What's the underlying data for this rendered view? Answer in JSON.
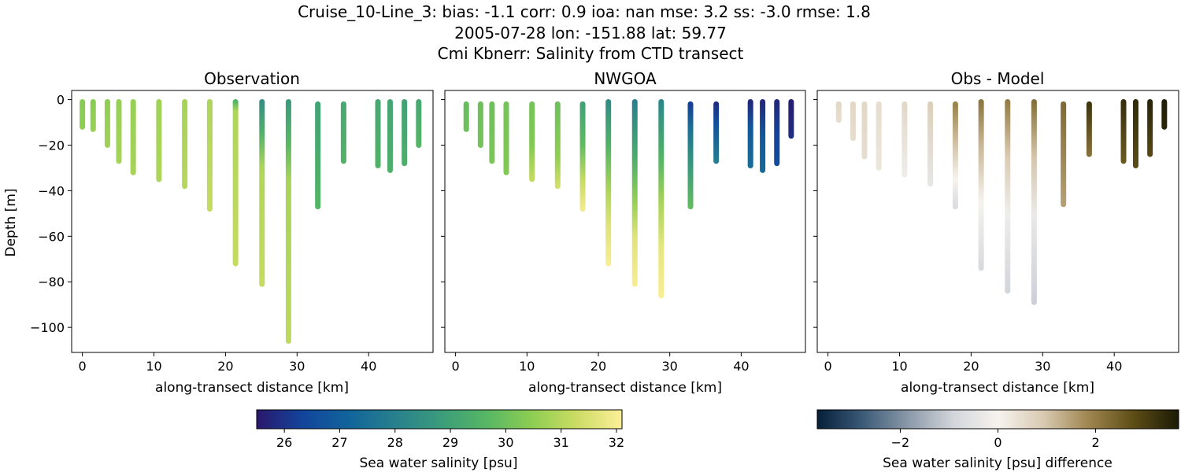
{
  "header": {
    "title_lines": [
      "Cruise_10-Line_3: bias: -1.1  corr: 0.9  ioa: nan  mse: 3.2  ss: -3.0  rmse: 1.8",
      "2005-07-28 lon: -151.88 lat: 59.77",
      "Cmi Kbnerr: Salinity from CTD transect"
    ]
  },
  "chart_data": [
    {
      "type": "scatter",
      "panel": "observation",
      "title": "Observation",
      "xlabel": "along-transect distance [km]",
      "ylabel": "Depth [m]",
      "xlim": [
        -1.5,
        49
      ],
      "ylim": [
        -111,
        4
      ],
      "xticks": [
        0,
        10,
        20,
        30,
        40
      ],
      "yticks": [
        0,
        -20,
        -40,
        -60,
        -80,
        -100
      ],
      "colormap": "haline",
      "clim": [
        25.5,
        32.1
      ],
      "profiles": [
        {
          "x": 0.0,
          "top": -1,
          "bottom": -12,
          "stops": [
            [
              0,
              30.4
            ],
            [
              -12,
              30.5
            ]
          ]
        },
        {
          "x": 1.5,
          "top": -1,
          "bottom": -13,
          "stops": [
            [
              0,
              30.4
            ],
            [
              -13,
              30.6
            ]
          ]
        },
        {
          "x": 3.5,
          "top": -1,
          "bottom": -20,
          "stops": [
            [
              0,
              30.5
            ],
            [
              -20,
              30.7
            ]
          ]
        },
        {
          "x": 5.1,
          "top": -1,
          "bottom": -27,
          "stops": [
            [
              0,
              30.6
            ],
            [
              -27,
              30.8
            ]
          ]
        },
        {
          "x": 7.1,
          "top": -1,
          "bottom": -32,
          "stops": [
            [
              0,
              30.6
            ],
            [
              -32,
              30.8
            ]
          ]
        },
        {
          "x": 10.7,
          "top": -1,
          "bottom": -35,
          "stops": [
            [
              0,
              30.7
            ],
            [
              -35,
              30.9
            ]
          ]
        },
        {
          "x": 14.3,
          "top": -1,
          "bottom": -38,
          "stops": [
            [
              0,
              30.8
            ],
            [
              -38,
              31.0
            ]
          ]
        },
        {
          "x": 17.8,
          "top": -1,
          "bottom": -48,
          "stops": [
            [
              0,
              30.9
            ],
            [
              -48,
              31.2
            ]
          ]
        },
        {
          "x": 21.4,
          "top": -1,
          "bottom": -72,
          "stops": [
            [
              0,
              29.6
            ],
            [
              -5,
              30.9
            ],
            [
              -72,
              31.2
            ]
          ]
        },
        {
          "x": 25.1,
          "top": -1,
          "bottom": -81,
          "stops": [
            [
              0,
              28.5
            ],
            [
              -15,
              29.5
            ],
            [
              -30,
              30.9
            ],
            [
              -81,
              31.2
            ]
          ]
        },
        {
          "x": 28.8,
          "top": -1,
          "bottom": -106,
          "stops": [
            [
              0,
              28.8
            ],
            [
              -20,
              29.7
            ],
            [
              -35,
              30.8
            ],
            [
              -106,
              31.1
            ]
          ]
        },
        {
          "x": 32.9,
          "top": -2,
          "bottom": -47,
          "stops": [
            [
              -2,
              29.0
            ],
            [
              -47,
              29.6
            ]
          ]
        },
        {
          "x": 36.5,
          "top": -2,
          "bottom": -27,
          "stops": [
            [
              -2,
              29.2
            ],
            [
              -27,
              29.5
            ]
          ]
        },
        {
          "x": 41.3,
          "top": -1,
          "bottom": -29,
          "stops": [
            [
              0,
              29.2
            ],
            [
              -29,
              29.5
            ]
          ]
        },
        {
          "x": 43.0,
          "top": -1,
          "bottom": -31,
          "stops": [
            [
              0,
              29.1
            ],
            [
              -31,
              29.4
            ]
          ]
        },
        {
          "x": 45.0,
          "top": -1,
          "bottom": -28,
          "stops": [
            [
              0,
              29.0
            ],
            [
              -28,
              29.4
            ]
          ]
        },
        {
          "x": 47.0,
          "top": -1,
          "bottom": -20,
          "stops": [
            [
              0,
              29.2
            ],
            [
              -20,
              29.6
            ]
          ]
        }
      ]
    },
    {
      "type": "scatter",
      "panel": "model",
      "title": "NWGOA",
      "xlabel": "along-transect distance [km]",
      "ylabel": "",
      "xlim": [
        -1.5,
        49
      ],
      "ylim": [
        -111,
        4
      ],
      "xticks": [
        0,
        10,
        20,
        30,
        40
      ],
      "yticks": [
        0,
        -20,
        -40,
        -60,
        -80,
        -100
      ],
      "colormap": "haline",
      "clim": [
        25.5,
        32.1
      ],
      "profiles": [
        {
          "x": 1.5,
          "top": -2,
          "bottom": -13,
          "stops": [
            [
              -2,
              29.9
            ],
            [
              -13,
              30.0
            ]
          ]
        },
        {
          "x": 3.5,
          "top": -2,
          "bottom": -20,
          "stops": [
            [
              -2,
              30.0
            ],
            [
              -20,
              30.1
            ]
          ]
        },
        {
          "x": 5.1,
          "top": -2,
          "bottom": -27,
          "stops": [
            [
              -2,
              30.0
            ],
            [
              -27,
              30.2
            ]
          ]
        },
        {
          "x": 7.1,
          "top": -2,
          "bottom": -32,
          "stops": [
            [
              -2,
              30.1
            ],
            [
              -32,
              30.3
            ]
          ]
        },
        {
          "x": 10.7,
          "top": -2,
          "bottom": -35,
          "stops": [
            [
              -2,
              30.1
            ],
            [
              -20,
              30.3
            ],
            [
              -35,
              31.2
            ]
          ]
        },
        {
          "x": 14.3,
          "top": -2,
          "bottom": -38,
          "stops": [
            [
              -2,
              30.0
            ],
            [
              -25,
              30.5
            ],
            [
              -38,
              31.4
            ]
          ]
        },
        {
          "x": 17.8,
          "top": -2,
          "bottom": -48,
          "stops": [
            [
              -2,
              29.0
            ],
            [
              -20,
              29.8
            ],
            [
              -35,
              31.2
            ],
            [
              -48,
              31.9
            ]
          ]
        },
        {
          "x": 21.4,
          "top": -1,
          "bottom": -72,
          "stops": [
            [
              0,
              28.4
            ],
            [
              -20,
              29.5
            ],
            [
              -40,
              30.9
            ],
            [
              -55,
              31.6
            ],
            [
              -72,
              32.0
            ]
          ]
        },
        {
          "x": 25.1,
          "top": -1,
          "bottom": -81,
          "stops": [
            [
              0,
              28.0
            ],
            [
              -25,
              29.3
            ],
            [
              -45,
              30.6
            ],
            [
              -60,
              31.6
            ],
            [
              -81,
              32.0
            ]
          ]
        },
        {
          "x": 28.8,
          "top": -1,
          "bottom": -86,
          "stops": [
            [
              0,
              28.2
            ],
            [
              -25,
              29.5
            ],
            [
              -45,
              30.8
            ],
            [
              -65,
              31.7
            ],
            [
              -86,
              32.0
            ]
          ]
        },
        {
          "x": 32.9,
          "top": -2,
          "bottom": -47,
          "stops": [
            [
              -2,
              26.2
            ],
            [
              -12,
              27.5
            ],
            [
              -30,
              28.8
            ],
            [
              -47,
              29.8
            ]
          ]
        },
        {
          "x": 36.5,
          "top": -2,
          "bottom": -27,
          "stops": [
            [
              -2,
              25.9
            ],
            [
              -10,
              26.6
            ],
            [
              -27,
              27.9
            ]
          ]
        },
        {
          "x": 41.3,
          "top": -1,
          "bottom": -29,
          "stops": [
            [
              0,
              25.8
            ],
            [
              -12,
              26.8
            ],
            [
              -29,
              27.4
            ]
          ]
        },
        {
          "x": 43.0,
          "top": -1,
          "bottom": -31,
          "stops": [
            [
              0,
              25.8
            ],
            [
              -15,
              26.8
            ],
            [
              -31,
              27.3
            ]
          ]
        },
        {
          "x": 45.0,
          "top": -1,
          "bottom": -28,
          "stops": [
            [
              0,
              25.8
            ],
            [
              -15,
              26.3
            ],
            [
              -28,
              26.5
            ]
          ]
        },
        {
          "x": 47.0,
          "top": -1,
          "bottom": -16,
          "stops": [
            [
              0,
              25.6
            ],
            [
              -16,
              25.9
            ]
          ]
        }
      ]
    },
    {
      "type": "scatter",
      "panel": "difference",
      "title": "Obs - Model",
      "xlabel": "along-transect distance [km]",
      "ylabel": "",
      "xlim": [
        -1.5,
        49
      ],
      "ylim": [
        -111,
        4
      ],
      "xticks": [
        0,
        10,
        20,
        30,
        40
      ],
      "yticks": [
        0,
        -20,
        -40,
        -60,
        -80,
        -100
      ],
      "colormap": "diff",
      "clim": [
        -3.7,
        3.7
      ],
      "profiles": [
        {
          "x": 1.5,
          "top": -2,
          "bottom": -9,
          "stops": [
            [
              -2,
              0.6
            ],
            [
              -9,
              0.5
            ]
          ]
        },
        {
          "x": 3.5,
          "top": -2,
          "bottom": -17,
          "stops": [
            [
              -2,
              0.6
            ],
            [
              -17,
              0.5
            ]
          ]
        },
        {
          "x": 5.1,
          "top": -2,
          "bottom": -25,
          "stops": [
            [
              -2,
              0.6
            ],
            [
              -25,
              0.5
            ]
          ]
        },
        {
          "x": 7.1,
          "top": -2,
          "bottom": -30,
          "stops": [
            [
              -2,
              0.5
            ],
            [
              -30,
              0.3
            ]
          ]
        },
        {
          "x": 10.7,
          "top": -2,
          "bottom": -33,
          "stops": [
            [
              -2,
              0.6
            ],
            [
              -33,
              -0.2
            ]
          ]
        },
        {
          "x": 14.3,
          "top": -2,
          "bottom": -37,
          "stops": [
            [
              -2,
              0.8
            ],
            [
              -37,
              -0.4
            ]
          ]
        },
        {
          "x": 17.8,
          "top": -2,
          "bottom": -47,
          "stops": [
            [
              -2,
              1.9
            ],
            [
              -20,
              1.0
            ],
            [
              -35,
              0.0
            ],
            [
              -47,
              -0.7
            ]
          ]
        },
        {
          "x": 21.4,
          "top": -1,
          "bottom": -74,
          "stops": [
            [
              0,
              2.1
            ],
            [
              -20,
              1.2
            ],
            [
              -45,
              0.0
            ],
            [
              -74,
              -0.8
            ]
          ]
        },
        {
          "x": 25.1,
          "top": -1,
          "bottom": -84,
          "stops": [
            [
              0,
              2.0
            ],
            [
              -25,
              0.9
            ],
            [
              -50,
              -0.2
            ],
            [
              -84,
              -0.9
            ]
          ]
        },
        {
          "x": 28.8,
          "top": -1,
          "bottom": -89,
          "stops": [
            [
              0,
              2.2
            ],
            [
              -25,
              1.0
            ],
            [
              -50,
              -0.3
            ],
            [
              -89,
              -1.0
            ]
          ]
        },
        {
          "x": 32.9,
          "top": -2,
          "bottom": -46,
          "stops": [
            [
              -2,
              2.3
            ],
            [
              -46,
              1.5
            ]
          ]
        },
        {
          "x": 36.5,
          "top": -2,
          "bottom": -24,
          "stops": [
            [
              -2,
              3.2
            ],
            [
              -24,
              2.2
            ]
          ]
        },
        {
          "x": 41.3,
          "top": -1,
          "bottom": -27,
          "stops": [
            [
              0,
              3.3
            ],
            [
              -27,
              2.6
            ]
          ]
        },
        {
          "x": 43.0,
          "top": -1,
          "bottom": -29,
          "stops": [
            [
              0,
              3.4
            ],
            [
              -29,
              2.8
            ]
          ]
        },
        {
          "x": 45.0,
          "top": -1,
          "bottom": -24,
          "stops": [
            [
              0,
              3.5
            ],
            [
              -24,
              2.9
            ]
          ]
        },
        {
          "x": 47.0,
          "top": -1,
          "bottom": -12,
          "stops": [
            [
              0,
              3.6
            ],
            [
              -12,
              3.5
            ]
          ]
        }
      ]
    }
  ],
  "colorbars": [
    {
      "name": "salinity-colorbar",
      "label": "Sea water salinity [psu]",
      "colormap": "haline",
      "range": [
        25.5,
        32.1
      ],
      "ticks": [
        26,
        27,
        28,
        29,
        30,
        31,
        32
      ]
    },
    {
      "name": "difference-colorbar",
      "label": "Sea water salinity [psu] difference",
      "colormap": "diff",
      "range": [
        -3.7,
        3.7
      ],
      "ticks": [
        -2,
        0,
        2
      ]
    }
  ],
  "colormaps": {
    "haline": [
      "#2a186c",
      "#12449c",
      "#11649b",
      "#277f8e",
      "#3a9b7c",
      "#55b665",
      "#8ccd52",
      "#cbdc63",
      "#fdef9a"
    ],
    "diff": [
      "#051f3a",
      "#3b5a77",
      "#8a98a8",
      "#d2d5da",
      "#f6f3ee",
      "#d9cab2",
      "#9f8650",
      "#5e4d16",
      "#1a1a06"
    ]
  }
}
